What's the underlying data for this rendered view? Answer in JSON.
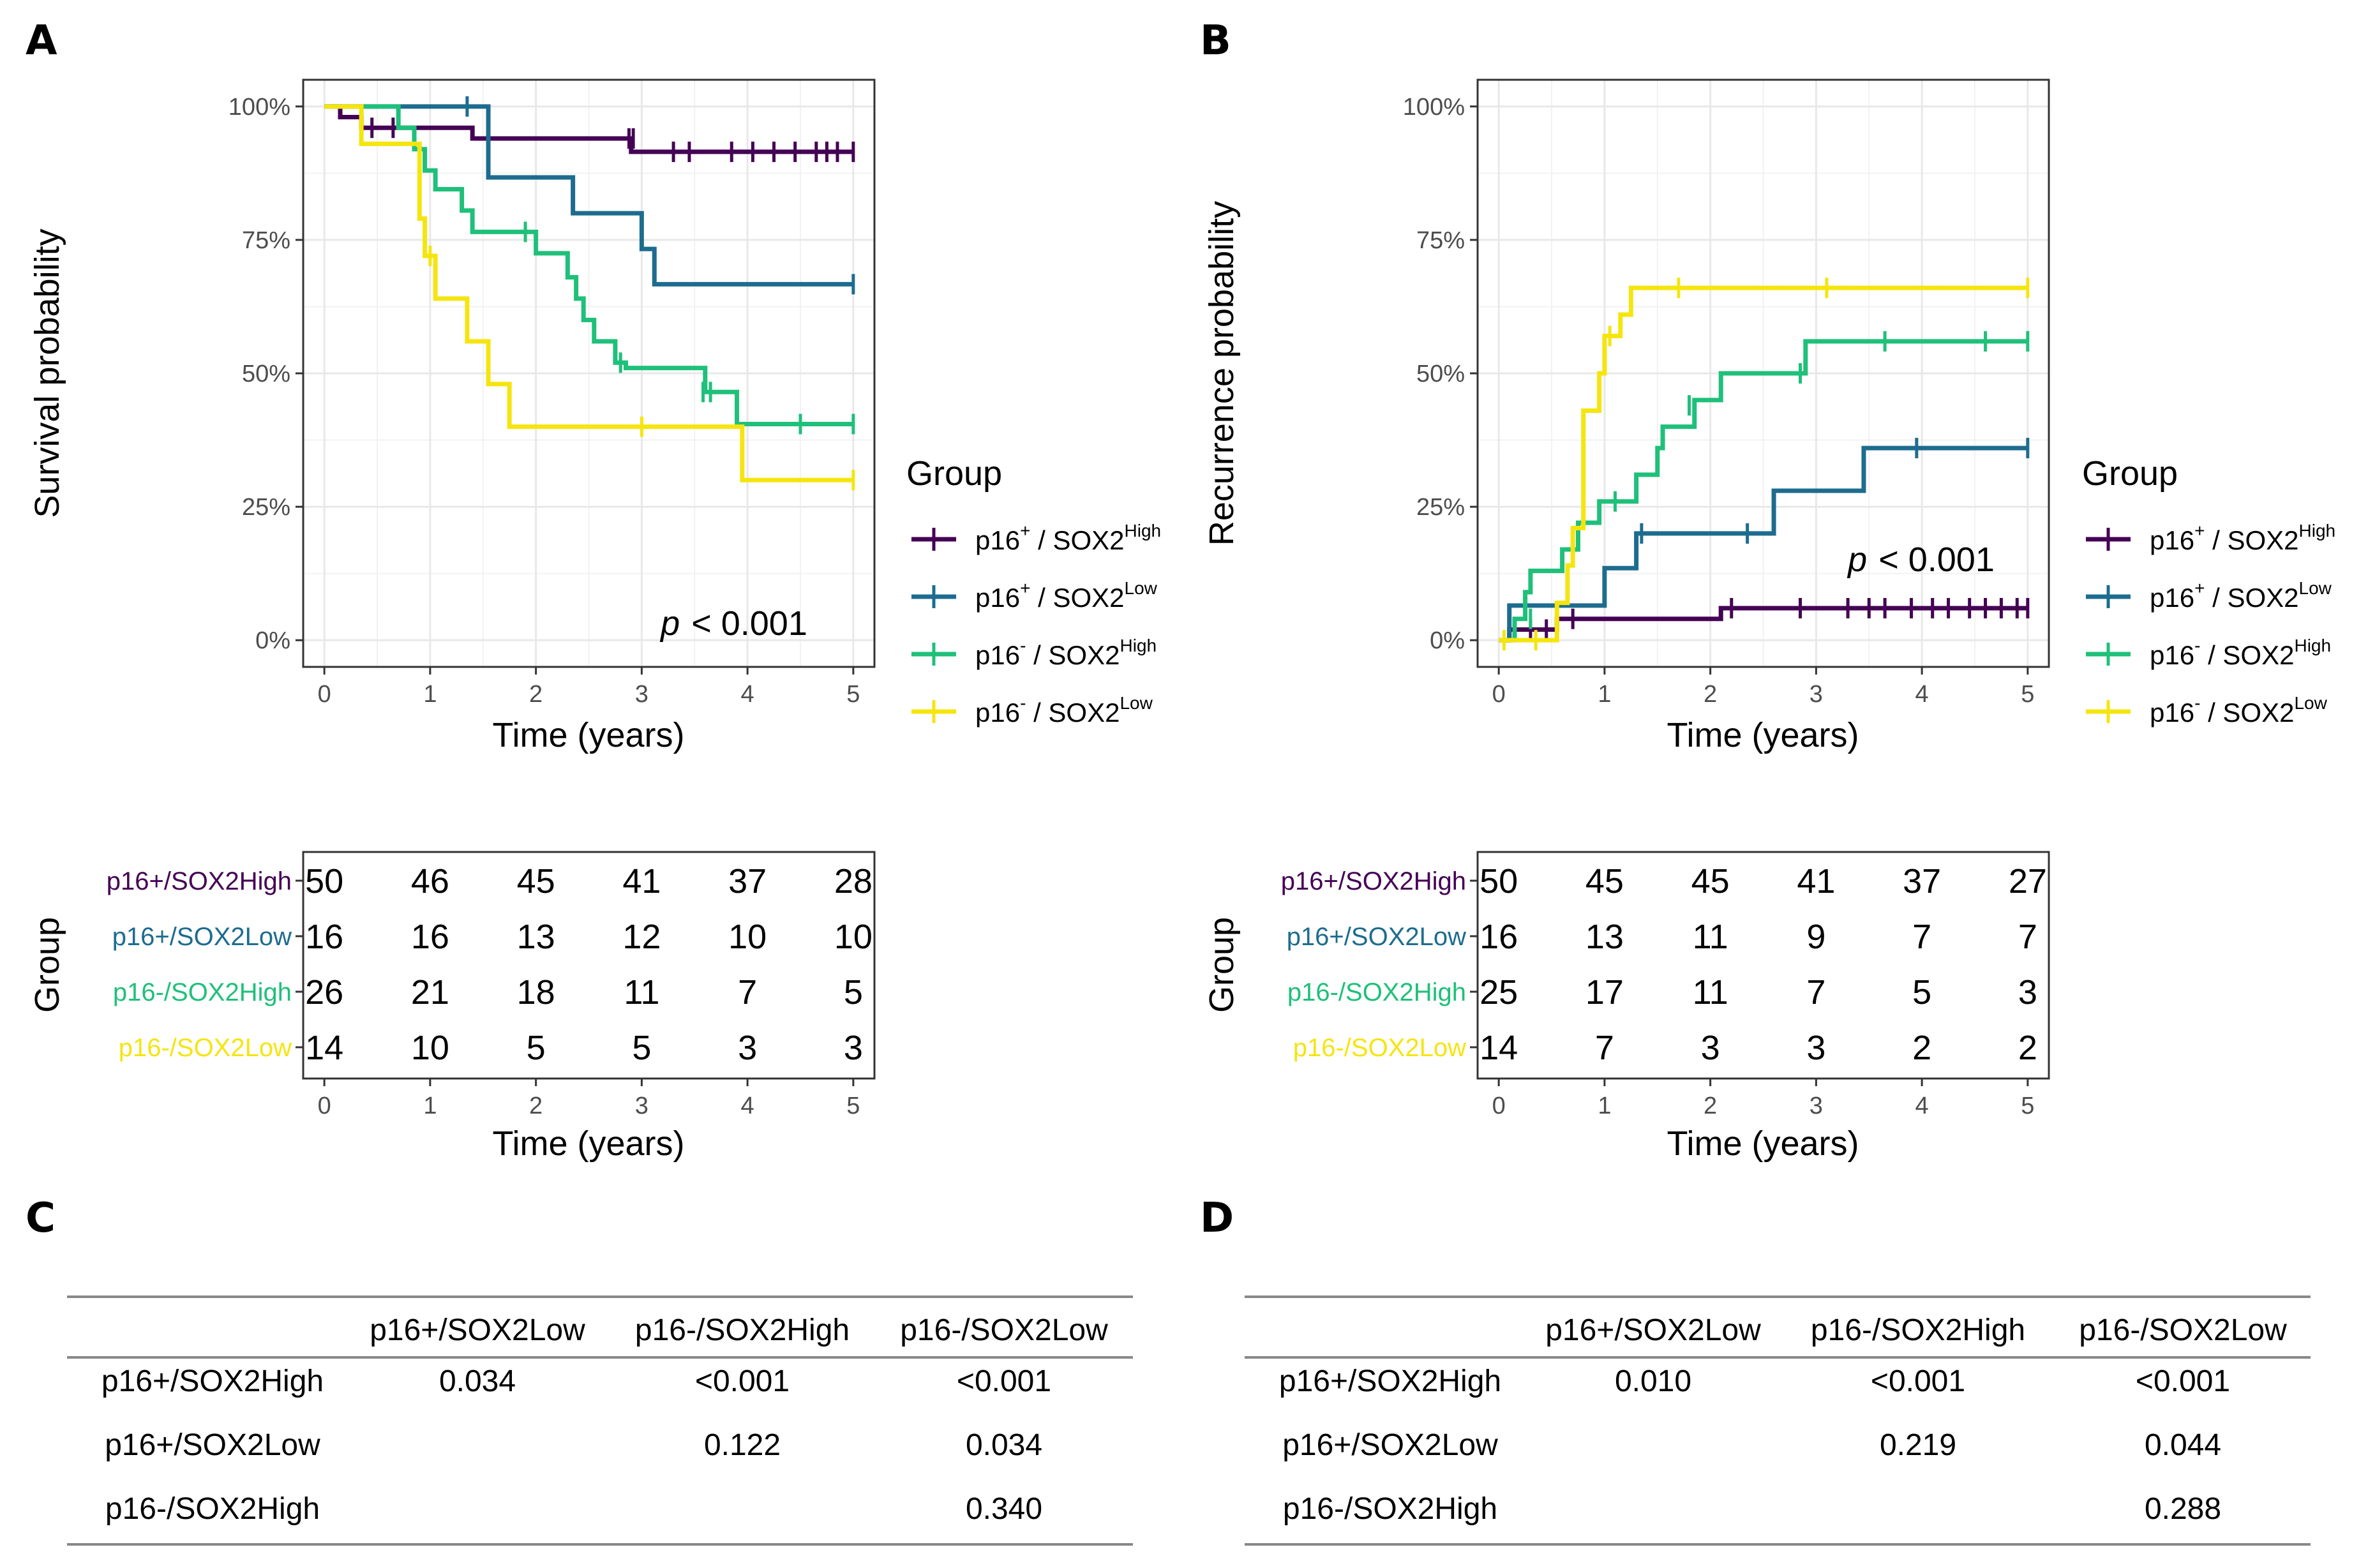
{
  "panel_labels": {
    "a": "A",
    "b": "B",
    "c": "C",
    "d": "D"
  },
  "colors": {
    "p16pos_sox2high": "#440154",
    "p16pos_sox2low": "#1d6c8f",
    "p16neg_sox2high": "#1fc07a",
    "p16neg_sox2low": "#f5e50f"
  },
  "legend": {
    "title": "Group",
    "entries": [
      {
        "pre": "p16",
        "sup1": "+",
        "mid": " / SOX2",
        "sup2": "High",
        "color_key": "p16pos_sox2high"
      },
      {
        "pre": "p16",
        "sup1": "+",
        "mid": " / SOX2",
        "sup2": "Low",
        "color_key": "p16pos_sox2low"
      },
      {
        "pre": "p16",
        "sup1": "-",
        "mid": " / SOX2",
        "sup2": "High",
        "color_key": "p16neg_sox2high"
      },
      {
        "pre": "p16",
        "sup1": "-",
        "mid": " / SOX2",
        "sup2": "Low",
        "color_key": "p16neg_sox2low"
      }
    ]
  },
  "chart_data": [
    {
      "type": "line",
      "subtype": "kaplan-meier",
      "id": "A",
      "ylabel": "Survival probability",
      "xlabel": "Time (years)",
      "xlim": [
        -0.2,
        5.2
      ],
      "ylim": [
        -0.05,
        1.05
      ],
      "xticks": [
        0,
        1,
        2,
        3,
        4,
        5
      ],
      "yticks": [
        0,
        0.25,
        0.5,
        0.75,
        1.0
      ],
      "ytick_labels": [
        "0%",
        "25%",
        "50%",
        "75%",
        "100%"
      ],
      "pvalue": {
        "p": "p",
        "rest": "< 0.001"
      },
      "series": [
        {
          "name": "p16+/SOX2High",
          "color_key": "p16pos_sox2high",
          "steps": [
            [
              0,
              1.0
            ],
            [
              0.15,
              0.98
            ],
            [
              0.35,
              0.96
            ],
            [
              1.4,
              0.94
            ],
            [
              2.9,
              0.915
            ],
            [
              5,
              0.915
            ]
          ],
          "censors": [
            [
              0.45,
              0.96
            ],
            [
              0.65,
              0.96
            ],
            [
              2.88,
              0.94
            ],
            [
              2.92,
              0.94
            ],
            [
              3.3,
              0.915
            ],
            [
              3.45,
              0.915
            ],
            [
              3.85,
              0.915
            ],
            [
              4.05,
              0.915
            ],
            [
              4.25,
              0.915
            ],
            [
              4.45,
              0.915
            ],
            [
              4.65,
              0.915
            ],
            [
              4.75,
              0.915
            ],
            [
              4.85,
              0.915
            ],
            [
              5.0,
              0.915
            ]
          ]
        },
        {
          "name": "p16+/SOX2Low",
          "color_key": "p16pos_sox2low",
          "steps": [
            [
              0,
              1.0
            ],
            [
              1.55,
              0.867
            ],
            [
              2.35,
              0.8
            ],
            [
              3.0,
              0.733
            ],
            [
              3.12,
              0.667
            ],
            [
              5,
              0.667
            ]
          ],
          "censors": [
            [
              1.35,
              1.0
            ],
            [
              5.0,
              0.667
            ]
          ]
        },
        {
          "name": "p16-/SOX2High",
          "color_key": "p16neg_sox2high",
          "steps": [
            [
              0,
              1.0
            ],
            [
              0.7,
              0.96
            ],
            [
              0.85,
              0.92
            ],
            [
              0.95,
              0.88
            ],
            [
              1.05,
              0.845
            ],
            [
              1.3,
              0.805
            ],
            [
              1.4,
              0.765
            ],
            [
              2.0,
              0.725
            ],
            [
              2.3,
              0.68
            ],
            [
              2.38,
              0.64
            ],
            [
              2.45,
              0.6
            ],
            [
              2.55,
              0.56
            ],
            [
              2.75,
              0.52
            ],
            [
              2.85,
              0.51
            ],
            [
              3.6,
              0.465
            ],
            [
              3.9,
              0.405
            ],
            [
              5,
              0.405
            ]
          ],
          "censors": [
            [
              0.9,
              0.88
            ],
            [
              1.9,
              0.765
            ],
            [
              2.8,
              0.52
            ],
            [
              3.58,
              0.465
            ],
            [
              3.65,
              0.465
            ],
            [
              4.5,
              0.405
            ],
            [
              5.0,
              0.405
            ]
          ]
        },
        {
          "name": "p16-/SOX2Low",
          "color_key": "p16neg_sox2low",
          "steps": [
            [
              0,
              1.0
            ],
            [
              0.35,
              0.93
            ],
            [
              0.9,
              0.79
            ],
            [
              0.95,
              0.72
            ],
            [
              1.05,
              0.64
            ],
            [
              1.35,
              0.56
            ],
            [
              1.55,
              0.48
            ],
            [
              1.75,
              0.4
            ],
            [
              3.95,
              0.3
            ],
            [
              5,
              0.3
            ]
          ],
          "censors": [
            [
              1.0,
              0.72
            ],
            [
              3.0,
              0.4
            ],
            [
              5.0,
              0.3
            ]
          ]
        }
      ],
      "risk_table": {
        "ylabel": "Group",
        "xlabel": "Time (years)",
        "rows": [
          {
            "label": "p16+/SOX2High",
            "color_key": "p16pos_sox2high",
            "values": [
              "50",
              "46",
              "45",
              "41",
              "37",
              "28"
            ]
          },
          {
            "label": "p16+/SOX2Low",
            "color_key": "p16pos_sox2low",
            "values": [
              "16",
              "16",
              "13",
              "12",
              "10",
              "10"
            ]
          },
          {
            "label": "p16-/SOX2High",
            "color_key": "p16neg_sox2high",
            "values": [
              "26",
              "21",
              "18",
              "11",
              "7",
              "5"
            ]
          },
          {
            "label": "p16-/SOX2Low",
            "color_key": "p16neg_sox2low",
            "values": [
              "14",
              "10",
              "5",
              "5",
              "3",
              "3"
            ]
          }
        ]
      }
    },
    {
      "type": "line",
      "subtype": "cumulative-incidence",
      "id": "B",
      "ylabel": "Recurrence probability",
      "xlabel": "Time (years)",
      "xlim": [
        -0.2,
        5.2
      ],
      "ylim": [
        -0.05,
        1.05
      ],
      "xticks": [
        0,
        1,
        2,
        3,
        4,
        5
      ],
      "yticks": [
        0,
        0.25,
        0.5,
        0.75,
        1.0
      ],
      "ytick_labels": [
        "0%",
        "25%",
        "50%",
        "75%",
        "100%"
      ],
      "pvalue": {
        "p": "p",
        "rest": "< 0.001"
      },
      "series": [
        {
          "name": "p16+/SOX2High",
          "color_key": "p16pos_sox2high",
          "steps": [
            [
              0,
              0.0
            ],
            [
              0.1,
              0.02
            ],
            [
              0.55,
              0.04
            ],
            [
              0.9,
              0.04
            ],
            [
              2.1,
              0.06
            ],
            [
              5,
              0.06
            ]
          ],
          "censors": [
            [
              0.15,
              0.02
            ],
            [
              0.3,
              0.02
            ],
            [
              0.45,
              0.02
            ],
            [
              0.7,
              0.04
            ],
            [
              2.2,
              0.06
            ],
            [
              2.85,
              0.06
            ],
            [
              3.3,
              0.06
            ],
            [
              3.5,
              0.06
            ],
            [
              3.65,
              0.06
            ],
            [
              3.9,
              0.06
            ],
            [
              4.1,
              0.06
            ],
            [
              4.25,
              0.06
            ],
            [
              4.45,
              0.06
            ],
            [
              4.6,
              0.06
            ],
            [
              4.75,
              0.06
            ],
            [
              4.9,
              0.06
            ],
            [
              5.0,
              0.06
            ]
          ]
        },
        {
          "name": "p16+/SOX2Low",
          "color_key": "p16pos_sox2low",
          "steps": [
            [
              0,
              0.0
            ],
            [
              0.1,
              0.065
            ],
            [
              0.35,
              0.065
            ],
            [
              1.0,
              0.135
            ],
            [
              1.3,
              0.2
            ],
            [
              2.6,
              0.28
            ],
            [
              3.45,
              0.36
            ],
            [
              5,
              0.36
            ]
          ],
          "censors": [
            [
              1.35,
              0.2
            ],
            [
              2.35,
              0.2
            ],
            [
              3.95,
              0.36
            ],
            [
              5.0,
              0.36
            ]
          ]
        },
        {
          "name": "p16-/SOX2High",
          "color_key": "p16neg_sox2high",
          "steps": [
            [
              0,
              0.0
            ],
            [
              0.15,
              0.04
            ],
            [
              0.25,
              0.09
            ],
            [
              0.3,
              0.13
            ],
            [
              0.6,
              0.17
            ],
            [
              0.75,
              0.22
            ],
            [
              0.95,
              0.26
            ],
            [
              1.3,
              0.31
            ],
            [
              1.5,
              0.36
            ],
            [
              1.55,
              0.4
            ],
            [
              1.85,
              0.45
            ],
            [
              2.1,
              0.5
            ],
            [
              2.9,
              0.56
            ],
            [
              5,
              0.56
            ]
          ],
          "censors": [
            [
              0.3,
              0.04
            ],
            [
              1.1,
              0.26
            ],
            [
              1.8,
              0.44
            ],
            [
              2.85,
              0.5
            ],
            [
              3.65,
              0.56
            ],
            [
              4.6,
              0.56
            ],
            [
              5.0,
              0.56
            ]
          ]
        },
        {
          "name": "p16-/SOX2Low",
          "color_key": "p16neg_sox2low",
          "steps": [
            [
              0,
              0.0
            ],
            [
              0.2,
              0.0
            ],
            [
              0.55,
              0.07
            ],
            [
              0.65,
              0.14
            ],
            [
              0.7,
              0.21
            ],
            [
              0.8,
              0.43
            ],
            [
              0.95,
              0.5
            ],
            [
              1.0,
              0.57
            ],
            [
              1.15,
              0.61
            ],
            [
              1.25,
              0.66
            ],
            [
              5,
              0.66
            ]
          ],
          "censors": [
            [
              0.05,
              0.0
            ],
            [
              0.35,
              0.0
            ],
            [
              1.05,
              0.57
            ],
            [
              1.7,
              0.66
            ],
            [
              3.1,
              0.66
            ],
            [
              5.0,
              0.66
            ]
          ]
        }
      ],
      "risk_table": {
        "ylabel": "Group",
        "xlabel": "Time (years)",
        "rows": [
          {
            "label": "p16+/SOX2High",
            "color_key": "p16pos_sox2high",
            "values": [
              "50",
              "45",
              "45",
              "41",
              "37",
              "27"
            ]
          },
          {
            "label": "p16+/SOX2Low",
            "color_key": "p16pos_sox2low",
            "values": [
              "16",
              "13",
              "11",
              "9",
              "7",
              "7"
            ]
          },
          {
            "label": "p16-/SOX2High",
            "color_key": "p16neg_sox2high",
            "values": [
              "25",
              "17",
              "11",
              "7",
              "5",
              "3"
            ]
          },
          {
            "label": "p16-/SOX2Low",
            "color_key": "p16neg_sox2low",
            "values": [
              "14",
              "7",
              "3",
              "3",
              "2",
              "2"
            ]
          }
        ]
      }
    },
    {
      "type": "table",
      "id": "C",
      "columns": [
        "p16+/SOX2Low",
        "p16-/SOX2High",
        "p16-/SOX2Low"
      ],
      "rows": [
        {
          "label": "p16+/SOX2High",
          "cells": [
            "0.034",
            "<0.001",
            "<0.001"
          ]
        },
        {
          "label": "p16+/SOX2Low",
          "cells": [
            "",
            "0.122",
            "0.034"
          ]
        },
        {
          "label": "p16-/SOX2High",
          "cells": [
            "",
            "",
            "0.340"
          ]
        }
      ]
    },
    {
      "type": "table",
      "id": "D",
      "columns": [
        "p16+/SOX2Low",
        "p16-/SOX2High",
        "p16-/SOX2Low"
      ],
      "rows": [
        {
          "label": "p16+/SOX2High",
          "cells": [
            "0.010",
            "<0.001",
            "<0.001"
          ]
        },
        {
          "label": "p16+/SOX2Low",
          "cells": [
            "",
            "0.219",
            "0.044"
          ]
        },
        {
          "label": "p16-/SOX2High",
          "cells": [
            "",
            "",
            "0.288"
          ]
        }
      ]
    }
  ]
}
